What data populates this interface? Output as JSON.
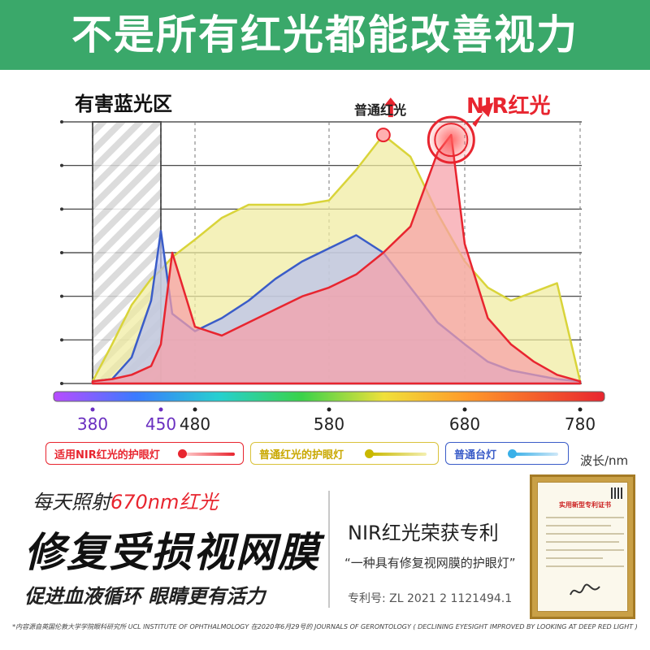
{
  "banner": {
    "title": "不是所有红光都能改善视力",
    "color": "#3aa86a"
  },
  "labels": {
    "zone": "有害蓝光区",
    "normal_peak": "普通红光",
    "nir_peak": "NIR红光"
  },
  "chart_data": {
    "type": "area",
    "x_ticks": [
      380,
      450,
      480,
      580,
      680,
      780
    ],
    "x_tick_colors": [
      "#6a2fc0",
      "#6a2fc0",
      "#222222",
      "#222222",
      "#222222",
      "#222222"
    ],
    "xlabel": "波长/nm",
    "xlim": [
      380,
      780
    ],
    "harmful_blue_zone": [
      380,
      450
    ],
    "series": [
      {
        "name": "普通红光的护眼灯",
        "color": "#d9d43a",
        "x": [
          380,
          400,
          420,
          440,
          450,
          460,
          480,
          500,
          520,
          540,
          560,
          580,
          600,
          620,
          640,
          660,
          680,
          700,
          720,
          740,
          760,
          780
        ],
        "y": [
          0.05,
          0.9,
          1.8,
          2.4,
          2.6,
          2.9,
          3.3,
          3.8,
          4.1,
          4.1,
          4.1,
          4.2,
          4.9,
          5.7,
          5.2,
          3.9,
          2.8,
          2.2,
          1.9,
          2.1,
          2.3,
          0.05
        ]
      },
      {
        "name": "普通台灯",
        "color": "#3a5cc8",
        "x": [
          380,
          400,
          420,
          440,
          450,
          460,
          480,
          500,
          520,
          540,
          560,
          580,
          600,
          620,
          640,
          660,
          680,
          700,
          720,
          740,
          760,
          780
        ],
        "y": [
          0.05,
          0.1,
          0.6,
          1.9,
          3.5,
          1.6,
          1.2,
          1.5,
          1.9,
          2.4,
          2.8,
          3.1,
          3.4,
          3.0,
          2.2,
          1.4,
          0.9,
          0.5,
          0.3,
          0.2,
          0.1,
          0.05
        ]
      },
      {
        "name": "适用NIR红光的护眼灯",
        "color": "#e8252f",
        "x": [
          380,
          400,
          420,
          440,
          450,
          460,
          480,
          500,
          520,
          540,
          560,
          580,
          600,
          620,
          640,
          660,
          670,
          680,
          700,
          720,
          740,
          760,
          780
        ],
        "y": [
          0.05,
          0.1,
          0.2,
          0.4,
          0.9,
          3.0,
          1.3,
          1.1,
          1.4,
          1.7,
          2.0,
          2.2,
          2.5,
          3.0,
          3.6,
          5.3,
          5.7,
          3.2,
          1.5,
          0.9,
          0.5,
          0.2,
          0.05
        ]
      }
    ]
  },
  "legend": [
    {
      "label": "适用NIR红光的护眼灯",
      "color": "#e8252f"
    },
    {
      "label": "普通红光的护眼灯",
      "color": "#c9b800"
    },
    {
      "label": "普通台灯",
      "color": "#3a8ad8"
    }
  ],
  "claims": {
    "line_a_prefix": "每天照射",
    "line_a_highlight": "670nm红光",
    "line_b": "修复受损视网膜",
    "line_c": "促进血液循环 眼睛更有活力"
  },
  "patent": {
    "title": "NIR红光荣获专利",
    "quote": "“一种具有修复视网膜的护眼灯”",
    "number": "专利号: ZL 2021 2 1121494.1",
    "cert_heading": "实用新型专利证书"
  },
  "footnote": "*内容源自英国伦敦大学学院眼科研究所 UCL INSTITUTE OF OPHTHALMOLOGY 在2020年6月29号的 JOURNALS OF GERONTOLOGY ( DECLINING EYESIGHT IMPROVED BY LOOKING AT DEEP RED LIGHT )"
}
